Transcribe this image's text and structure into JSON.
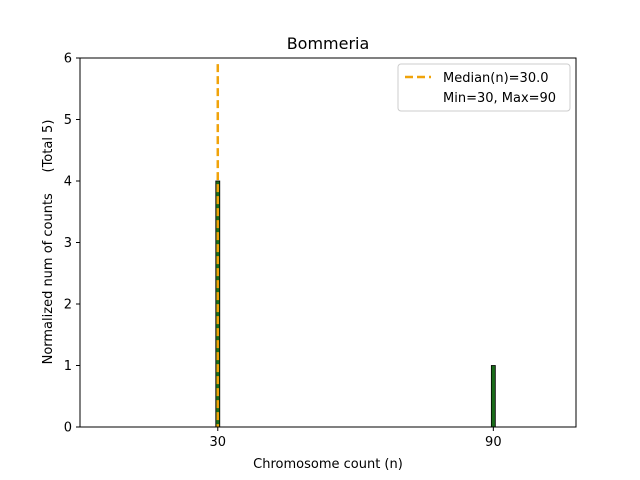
{
  "chart_data": {
    "type": "bar",
    "title": "Bommeria",
    "xlabel": "Chromosome count (n)",
    "ylabel": "Normalized num of counts     (Total 5)",
    "x": [
      30,
      90
    ],
    "xticks": [
      "30",
      "90"
    ],
    "values": [
      4,
      1
    ],
    "xlim": [
      0,
      108
    ],
    "ylim": [
      0,
      6
    ],
    "yticks": [
      0,
      1,
      2,
      3,
      4,
      5,
      6
    ],
    "median": 30.0,
    "bar_color": "#1a6b1a",
    "median_color": "#f0a30a",
    "legend": {
      "placement": "top-right",
      "entries": [
        {
          "label": "Median(n)=30.0",
          "style": "dashed-line"
        },
        {
          "label": "Min=30, Max=90",
          "style": "none"
        }
      ]
    }
  }
}
